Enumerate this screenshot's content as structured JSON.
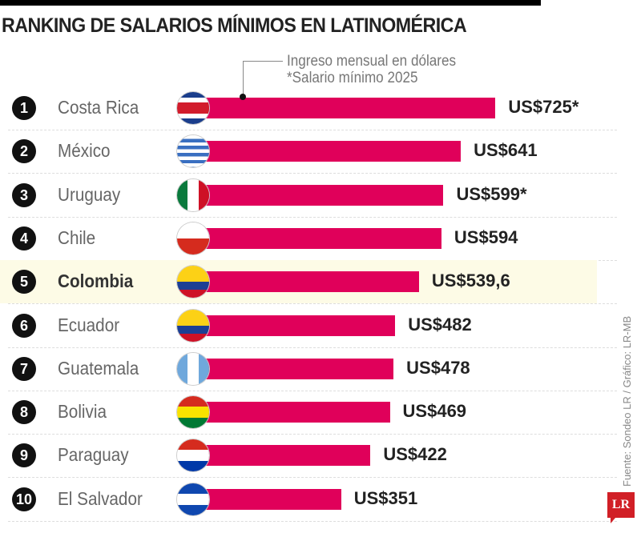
{
  "chart_data": {
    "type": "bar",
    "orientation": "horizontal",
    "title": "RANKING DE SALARIOS MÍNIMOS EN LATINOMÉRICA",
    "legend": [
      "Ingreso mensual en dólares",
      "*Salario mínimo 2025"
    ],
    "highlight_color": "#fdfbe6",
    "bar_color": "#e0005a",
    "rows": [
      {
        "rank": "1",
        "country": "Costa Rica",
        "value": 725,
        "label": "US$725*",
        "flag": "costa-rica"
      },
      {
        "rank": "2",
        "country": "México",
        "value": 641,
        "label": "US$641",
        "flag": "uruguay"
      },
      {
        "rank": "3",
        "country": "Uruguay",
        "value": 599,
        "label": "US$599*",
        "flag": "mexico"
      },
      {
        "rank": "4",
        "country": "Chile",
        "value": 594,
        "label": "US$594",
        "flag": "chile"
      },
      {
        "rank": "5",
        "country": "Colombia",
        "value": 539.6,
        "label": "US$539,6",
        "flag": "colombia",
        "highlighted": true
      },
      {
        "rank": "6",
        "country": "Ecuador",
        "value": 482,
        "label": "US$482",
        "flag": "ecuador"
      },
      {
        "rank": "7",
        "country": "Guatemala",
        "value": 478,
        "label": "US$478",
        "flag": "guatemala"
      },
      {
        "rank": "8",
        "country": "Bolivia",
        "value": 469,
        "label": "US$469",
        "flag": "bolivia"
      },
      {
        "rank": "9",
        "country": "Paraguay",
        "value": 422,
        "label": "US$422",
        "flag": "paraguay"
      },
      {
        "rank": "10",
        "country": "El Salvador",
        "value": 351,
        "label": "US$351",
        "flag": "el-salvador"
      }
    ]
  },
  "source": "Fuente: Sondeo LR  / Gráfico: LR-MB",
  "logo": "LR"
}
